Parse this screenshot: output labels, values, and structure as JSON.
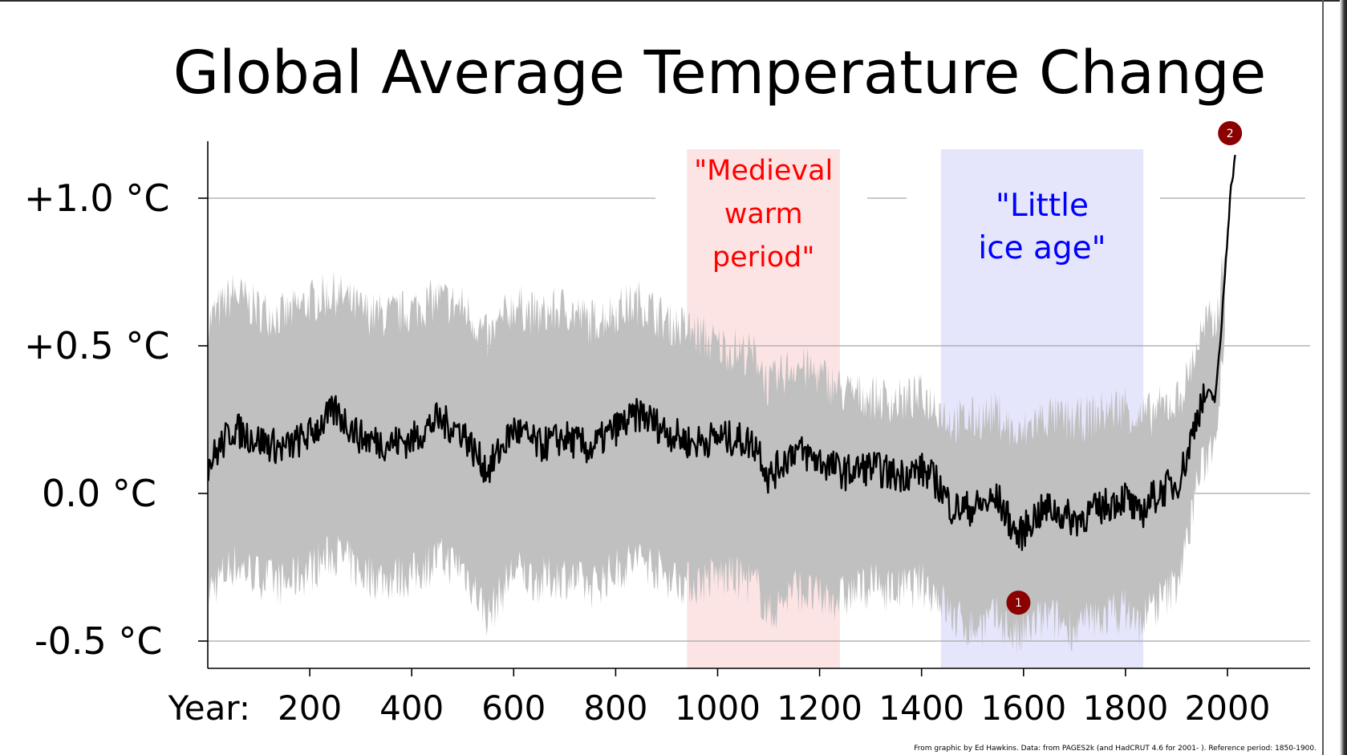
{
  "chart_data": {
    "type": "area",
    "title": "Global Average Temperature Change",
    "x_axis_prefix": "Year:",
    "x_ticks": [
      200,
      400,
      600,
      800,
      1000,
      1200,
      1400,
      1600,
      1800,
      2000
    ],
    "y_ticks": [
      {
        "value": 1.0,
        "label": "+1.0 °C"
      },
      {
        "value": 0.5,
        "label": "+0.5 °C"
      },
      {
        "value": 0.0,
        "label": "0.0 °C"
      },
      {
        "value": -0.5,
        "label": "-0.5 °C"
      }
    ],
    "xlim": [
      1,
      2160
    ],
    "ylim": [
      -0.6,
      1.18
    ],
    "grid": true,
    "bands": [
      {
        "label": "\"Medieval warm period\"",
        "lines": [
          "\"Medieval",
          "warm",
          "period\""
        ],
        "x_start": 940,
        "x_end": 1240,
        "color": "#fde4e4",
        "text_color": "#ff0000"
      },
      {
        "label": "\"Little ice age\"",
        "lines": [
          "\"Little",
          "ice age\""
        ],
        "x_start": 1438,
        "x_end": 1835,
        "color": "#e5e5fb",
        "text_color": "#0000ff"
      }
    ],
    "series": [
      {
        "kind": "mean",
        "x": [
          1,
          50,
          100,
          150,
          200,
          250,
          300,
          350,
          400,
          450,
          500,
          530,
          550,
          600,
          650,
          700,
          750,
          800,
          850,
          900,
          950,
          1000,
          1050,
          1080,
          1100,
          1150,
          1200,
          1250,
          1300,
          1350,
          1400,
          1430,
          1460,
          1500,
          1550,
          1590,
          1620,
          1650,
          1700,
          1750,
          1800,
          1825,
          1850,
          1880,
          1900,
          1920,
          1940,
          1960,
          1975,
          1985,
          1995,
          2005,
          2015
        ],
        "y": [
          0.1,
          0.22,
          0.18,
          0.15,
          0.2,
          0.28,
          0.19,
          0.17,
          0.18,
          0.25,
          0.21,
          0.12,
          0.08,
          0.22,
          0.16,
          0.19,
          0.15,
          0.22,
          0.27,
          0.21,
          0.17,
          0.19,
          0.18,
          0.16,
          0.05,
          0.15,
          0.11,
          0.07,
          0.09,
          0.06,
          0.08,
          0.04,
          -0.05,
          -0.05,
          -0.02,
          -0.15,
          -0.08,
          -0.05,
          -0.09,
          -0.05,
          -0.01,
          -0.08,
          -0.02,
          0.02,
          0.03,
          0.12,
          0.27,
          0.34,
          0.32,
          0.48,
          0.75,
          1.0,
          1.15
        ]
      },
      {
        "kind": "uncertainty",
        "x": [
          1,
          50,
          100,
          150,
          200,
          250,
          300,
          350,
          400,
          450,
          500,
          530,
          550,
          600,
          650,
          700,
          750,
          800,
          850,
          900,
          950,
          1000,
          1050,
          1080,
          1100,
          1150,
          1200,
          1250,
          1300,
          1350,
          1400,
          1430,
          1460,
          1500,
          1550,
          1590,
          1620,
          1650,
          1700,
          1750,
          1800,
          1825,
          1850,
          1880,
          1900,
          1920,
          1940,
          1960,
          1975,
          1985,
          1995
        ],
        "upper": [
          0.58,
          0.68,
          0.62,
          0.6,
          0.65,
          0.68,
          0.62,
          0.6,
          0.62,
          0.66,
          0.63,
          0.57,
          0.52,
          0.64,
          0.6,
          0.63,
          0.58,
          0.62,
          0.65,
          0.58,
          0.55,
          0.5,
          0.48,
          0.46,
          0.36,
          0.44,
          0.4,
          0.34,
          0.33,
          0.31,
          0.33,
          0.3,
          0.24,
          0.25,
          0.27,
          0.18,
          0.24,
          0.26,
          0.24,
          0.27,
          0.3,
          0.25,
          0.27,
          0.3,
          0.31,
          0.38,
          0.5,
          0.58,
          0.57,
          0.68,
          0.82
        ],
        "lower": [
          -0.33,
          -0.24,
          -0.28,
          -0.31,
          -0.26,
          -0.2,
          -0.27,
          -0.29,
          -0.28,
          -0.22,
          -0.25,
          -0.35,
          -0.42,
          -0.26,
          -0.3,
          -0.28,
          -0.32,
          -0.26,
          -0.22,
          -0.28,
          -0.31,
          -0.28,
          -0.29,
          -0.32,
          -0.42,
          -0.32,
          -0.36,
          -0.35,
          -0.31,
          -0.33,
          -0.31,
          -0.34,
          -0.42,
          -0.46,
          -0.42,
          -0.5,
          -0.44,
          -0.42,
          -0.46,
          -0.42,
          -0.39,
          -0.45,
          -0.39,
          -0.35,
          -0.3,
          -0.18,
          0.04,
          0.12,
          0.2,
          0.35,
          0.6
        ]
      }
    ],
    "markers": [
      {
        "label": "1",
        "x": 1590,
        "y": -0.37
      },
      {
        "label": "2",
        "x": 2005,
        "y": 1.22
      }
    ],
    "credit": "From graphic by Ed Hawkins.   Data: from PAGES2k (and HadCRUT 4.6 for 2001- ).   Reference period: 1850-1900."
  },
  "colors": {
    "mean_line": "#000000",
    "uncertainty_fill": "#c0c0c0",
    "marker": "#8b0000",
    "grid": "#a8a8a8"
  }
}
